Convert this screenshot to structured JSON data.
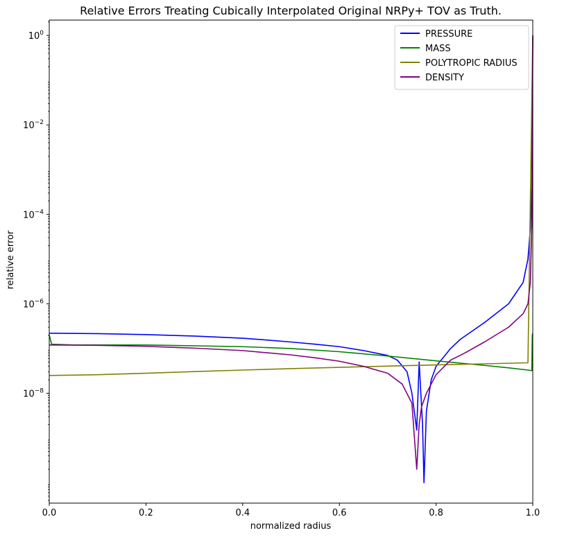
{
  "chart_data": {
    "type": "line",
    "title": "Relative Errors Treating Cubically Interpolated Original NRPy+ TOV as Truth.",
    "xlabel": "normalized radius",
    "ylabel": "relative error",
    "xlim": [
      0.0,
      1.0
    ],
    "ylim": [
      3.5e-11,
      2.2
    ],
    "yscale": "log",
    "x_ticks": [
      "0.0",
      "0.2",
      "0.4",
      "0.6",
      "0.8",
      "1.0"
    ],
    "y_ticks": [
      {
        "base": "10",
        "exp": "0"
      },
      {
        "base": "10",
        "exp": "−2"
      },
      {
        "base": "10",
        "exp": "−4"
      },
      {
        "base": "10",
        "exp": "−6"
      },
      {
        "base": "10",
        "exp": "−8"
      }
    ],
    "grid": false,
    "legend_position": "top-right",
    "series": [
      {
        "name": "PRESSURE",
        "color": "#0000ff",
        "points": [
          [
            0.0,
            2.2e-07
          ],
          [
            0.1,
            2.15e-07
          ],
          [
            0.2,
            2.05e-07
          ],
          [
            0.3,
            1.9e-07
          ],
          [
            0.4,
            1.7e-07
          ],
          [
            0.45,
            1.55e-07
          ],
          [
            0.5,
            1.4e-07
          ],
          [
            0.55,
            1.25e-07
          ],
          [
            0.6,
            1.1e-07
          ],
          [
            0.65,
            9e-08
          ],
          [
            0.7,
            7e-08
          ],
          [
            0.72,
            5.5e-08
          ],
          [
            0.74,
            3e-08
          ],
          [
            0.75,
            1e-08
          ],
          [
            0.76,
            1.5e-09
          ],
          [
            0.765,
            5e-08
          ],
          [
            0.772,
            2e-09
          ],
          [
            0.775,
            1e-10
          ],
          [
            0.78,
            4e-09
          ],
          [
            0.79,
            2e-08
          ],
          [
            0.8,
            4e-08
          ],
          [
            0.83,
            1e-07
          ],
          [
            0.85,
            1.6e-07
          ],
          [
            0.9,
            3.8e-07
          ],
          [
            0.95,
            1e-06
          ],
          [
            0.98,
            3e-06
          ],
          [
            0.99,
            1e-05
          ],
          [
            0.995,
            5e-05
          ],
          [
            0.998,
            0.0004
          ],
          [
            1.0,
            1.0
          ]
        ]
      },
      {
        "name": "MASS",
        "color": "#008000",
        "points": [
          [
            0.0,
            2e-07
          ],
          [
            0.005,
            1.25e-07
          ],
          [
            0.05,
            1.2e-07
          ],
          [
            0.1,
            1.2e-07
          ],
          [
            0.2,
            1.2e-07
          ],
          [
            0.3,
            1.15e-07
          ],
          [
            0.4,
            1.1e-07
          ],
          [
            0.5,
            1e-07
          ],
          [
            0.6,
            8.5e-08
          ],
          [
            0.7,
            6.8e-08
          ],
          [
            0.8,
            5.3e-08
          ],
          [
            0.9,
            4.2e-08
          ],
          [
            0.95,
            3.7e-08
          ],
          [
            0.99,
            3.3e-08
          ],
          [
            0.998,
            3.2e-08
          ],
          [
            0.999,
            2e-07
          ],
          [
            1.0,
            2.2e-07
          ]
        ]
      },
      {
        "name": "POLYTROPIC RADIUS",
        "color": "#808000",
        "points": [
          [
            0.0,
            2.5e-08
          ],
          [
            0.1,
            2.6e-08
          ],
          [
            0.2,
            2.8e-08
          ],
          [
            0.3,
            3.05e-08
          ],
          [
            0.4,
            3.3e-08
          ],
          [
            0.5,
            3.55e-08
          ],
          [
            0.6,
            3.8e-08
          ],
          [
            0.7,
            4.05e-08
          ],
          [
            0.8,
            4.3e-08
          ],
          [
            0.9,
            4.55e-08
          ],
          [
            0.99,
            4.8e-08
          ],
          [
            1.0,
            1.0
          ]
        ]
      },
      {
        "name": "DENSITY",
        "color": "#800080",
        "points": [
          [
            0.0,
            1.2e-07
          ],
          [
            0.1,
            1.18e-07
          ],
          [
            0.2,
            1.12e-07
          ],
          [
            0.3,
            1.02e-07
          ],
          [
            0.4,
            9e-08
          ],
          [
            0.5,
            7.2e-08
          ],
          [
            0.55,
            6.2e-08
          ],
          [
            0.6,
            5.2e-08
          ],
          [
            0.65,
            4e-08
          ],
          [
            0.7,
            2.8e-08
          ],
          [
            0.73,
            1.6e-08
          ],
          [
            0.75,
            6e-09
          ],
          [
            0.76,
            2e-10
          ],
          [
            0.765,
            2e-09
          ],
          [
            0.77,
            5e-09
          ],
          [
            0.78,
            1e-08
          ],
          [
            0.8,
            2.6e-08
          ],
          [
            0.83,
            5.5e-08
          ],
          [
            0.86,
            8e-08
          ],
          [
            0.9,
            1.4e-07
          ],
          [
            0.95,
            3e-07
          ],
          [
            0.98,
            6e-07
          ],
          [
            0.99,
            1e-06
          ],
          [
            0.995,
            3e-06
          ],
          [
            0.998,
            6e-05
          ],
          [
            1.0,
            1.0
          ]
        ]
      }
    ]
  }
}
